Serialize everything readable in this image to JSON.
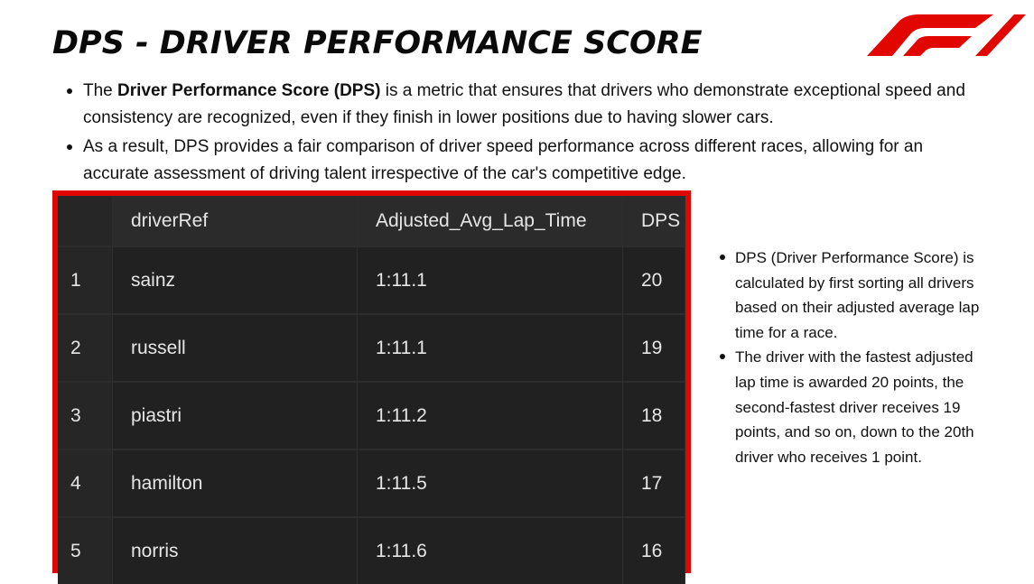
{
  "title": "DPS - DRIVER PERFORMANCE SCORE",
  "logo": {
    "icon": "f1-logo",
    "color": "#e10600"
  },
  "intro_bullets": [
    {
      "before": "The ",
      "bold": "Driver Performance Score (DPS)",
      "after": " is a metric that ensures that drivers who demonstrate exceptional speed and consistency are recognized, even if they finish in lower positions due to having slower cars."
    },
    {
      "text": " As a result, DPS provides a fair comparison of driver speed performance across different races, allowing for an accurate assessment of driving talent irrespective of the car's competitive edge."
    }
  ],
  "table": {
    "frame_color": "#e10600",
    "columns": [
      "",
      "driverRef",
      "Adjusted_Avg_Lap_Time",
      "DPS"
    ],
    "rows": [
      {
        "index": "1",
        "driverRef": "sainz",
        "time": "1:11.1",
        "dps": "20"
      },
      {
        "index": "2",
        "driverRef": "russell",
        "time": "1:11.1",
        "dps": "19"
      },
      {
        "index": "3",
        "driverRef": "piastri",
        "time": "1:11.2",
        "dps": "18"
      },
      {
        "index": "4",
        "driverRef": "hamilton",
        "time": "1:11.5",
        "dps": "17"
      },
      {
        "index": "5",
        "driverRef": "norris",
        "time": "1:11.6",
        "dps": "16"
      }
    ]
  },
  "side_bullets": [
    "DPS (Driver Performance Score) is calculated by first sorting all drivers based on their adjusted average lap time for a race.",
    "The driver with the fastest adjusted lap time is awarded 20 points, the second-fastest driver receives 19 points, and so on, down to the 20th driver who receives 1 point."
  ]
}
